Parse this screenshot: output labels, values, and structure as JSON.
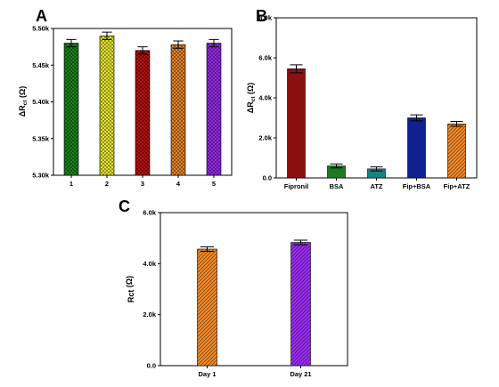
{
  "chart_data": [
    {
      "panel": "A",
      "type": "bar",
      "ylabel": {
        "main": "ΔR",
        "sub": "ct",
        "unit": " (Ω)"
      },
      "categories": [
        "1",
        "2",
        "3",
        "4",
        "5"
      ],
      "values": [
        5480,
        5490,
        5470,
        5478,
        5480
      ],
      "errors": [
        5,
        5,
        5,
        5,
        5
      ],
      "colors": [
        "#1f8a1f",
        "#f2f230",
        "#c01010",
        "#f08a2a",
        "#9b2cf2"
      ],
      "patterns": [
        "cross",
        "cross",
        "cross",
        "cross",
        "cross"
      ],
      "ylim": [
        5300,
        5500
      ],
      "yticks": [
        5300,
        5350,
        5400,
        5450,
        5500
      ],
      "ytick_labels": [
        "5.30k",
        "5.35k",
        "5.40k",
        "5.45k",
        "5.50k"
      ],
      "grid": false
    },
    {
      "panel": "B",
      "type": "bar",
      "ylabel": {
        "main": "ΔR",
        "sub": "ct",
        "unit": " (Ω)"
      },
      "categories": [
        "Fipronil",
        "BSA",
        "ATZ",
        "Fip+BSA",
        "Fip+ATZ"
      ],
      "values": [
        5450,
        600,
        450,
        3000,
        2700
      ],
      "errors": [
        200,
        100,
        100,
        150,
        120
      ],
      "colors": [
        "#8b1010",
        "#1f7a1f",
        "#1a8080",
        "#102090",
        "#f08a2a"
      ],
      "patterns": [
        "solid",
        "solid",
        "solid",
        "solid",
        "diag"
      ],
      "ylim": [
        0,
        8000
      ],
      "yticks": [
        0,
        2000,
        4000,
        6000,
        8000
      ],
      "ytick_labels": [
        "0.0",
        "2.0k",
        "4.0k",
        "6.0k",
        "8.0k"
      ],
      "grid": false
    },
    {
      "panel": "C",
      "type": "bar",
      "ylabel": {
        "main": "Rct",
        "sub": "",
        "unit": " (Ω)"
      },
      "categories": [
        "Day 1",
        "Day 21"
      ],
      "values": [
        4570,
        4830
      ],
      "errors": [
        90,
        90
      ],
      "colors": [
        "#f08a2a",
        "#9b2cf2"
      ],
      "patterns": [
        "diag",
        "diag"
      ],
      "ylim": [
        0,
        6000
      ],
      "yticks": [
        0,
        2000,
        4000,
        6000
      ],
      "ytick_labels": [
        "0.0",
        "2.0k",
        "4.0k",
        "6.0k"
      ],
      "grid": false
    }
  ]
}
